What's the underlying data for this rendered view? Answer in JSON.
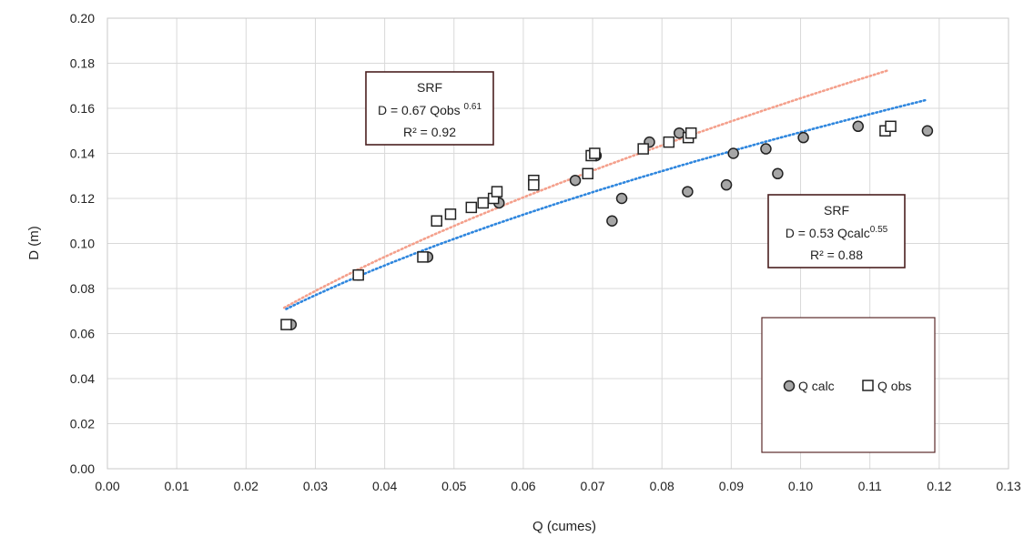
{
  "chart_data": {
    "type": "scatter",
    "title": "",
    "xlabel": "Q (cumes)",
    "ylabel": "D (m)",
    "xlim": [
      0,
      0.13
    ],
    "ylim": [
      0,
      0.2
    ],
    "x_ticks": [
      "0.00",
      "0.01",
      "0.02",
      "0.03",
      "0.04",
      "0.05",
      "0.06",
      "0.07",
      "0.08",
      "0.09",
      "0.10",
      "0.11",
      "0.12",
      "0.13"
    ],
    "y_ticks": [
      "0.00",
      "0.02",
      "0.04",
      "0.06",
      "0.08",
      "0.10",
      "0.12",
      "0.14",
      "0.16",
      "0.18",
      "0.20"
    ],
    "grid": true,
    "legend_position": "bottom-right",
    "series": [
      {
        "name": "Q calc",
        "marker": "circle",
        "color": "#a6a6a6",
        "points": [
          [
            0.0265,
            0.064
          ],
          [
            0.0362,
            0.086
          ],
          [
            0.0462,
            0.094
          ],
          [
            0.0565,
            0.118
          ],
          [
            0.0675,
            0.128
          ],
          [
            0.0705,
            0.139
          ],
          [
            0.0728,
            0.11
          ],
          [
            0.0742,
            0.12
          ],
          [
            0.0782,
            0.145
          ],
          [
            0.0825,
            0.149
          ],
          [
            0.0837,
            0.123
          ],
          [
            0.0893,
            0.126
          ],
          [
            0.0903,
            0.14
          ],
          [
            0.095,
            0.142
          ],
          [
            0.0967,
            0.131
          ],
          [
            0.1004,
            0.147
          ],
          [
            0.1083,
            0.152
          ],
          [
            0.1183,
            0.15
          ]
        ]
      },
      {
        "name": "Q obs",
        "marker": "square",
        "color": "#ffffff",
        "points": [
          [
            0.0258,
            0.064
          ],
          [
            0.0362,
            0.086
          ],
          [
            0.0455,
            0.094
          ],
          [
            0.0475,
            0.11
          ],
          [
            0.0495,
            0.113
          ],
          [
            0.0525,
            0.116
          ],
          [
            0.0542,
            0.118
          ],
          [
            0.0557,
            0.12
          ],
          [
            0.0562,
            0.123
          ],
          [
            0.0615,
            0.128
          ],
          [
            0.0615,
            0.126
          ],
          [
            0.0693,
            0.131
          ],
          [
            0.0698,
            0.139
          ],
          [
            0.0703,
            0.14
          ],
          [
            0.0773,
            0.142
          ],
          [
            0.081,
            0.145
          ],
          [
            0.0838,
            0.147
          ],
          [
            0.0842,
            0.149
          ],
          [
            0.1122,
            0.15
          ],
          [
            0.113,
            0.152
          ]
        ]
      }
    ],
    "trendlines": [
      {
        "series": "Q obs",
        "type": "power",
        "a": 0.67,
        "b": 0.61,
        "x_range": [
          0.0255,
          0.1125
        ],
        "color": "#f4a08c"
      },
      {
        "series": "Q calc",
        "type": "power",
        "a": 0.53,
        "b": 0.55,
        "x_range": [
          0.0258,
          0.1183
        ],
        "color": "#2e86de"
      }
    ],
    "annotations": [
      {
        "line1": "SRF",
        "eq_prefix": "D = 0.67 Qobs ",
        "eq_exp": "0.61",
        "r2": "R² = 0.92"
      },
      {
        "line1": "SRF",
        "eq_prefix": "D = 0.53 Qcalc",
        "eq_exp": "0.55",
        "r2": "R² = 0.88"
      }
    ],
    "legend": [
      {
        "label": "Q calc",
        "marker": "circle"
      },
      {
        "label": "Q obs",
        "marker": "square"
      }
    ]
  }
}
